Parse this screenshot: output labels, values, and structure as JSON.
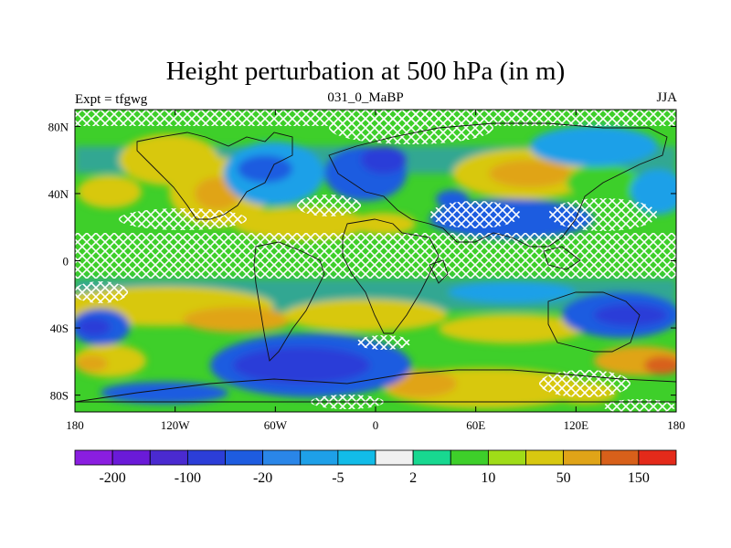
{
  "title": "Height perturbation at 500 hPa (in m)",
  "left_label": "Expt = tfgwg",
  "center_label": "031_0_MaBP",
  "right_label": "JJA",
  "map": {
    "lon_range": [
      -180,
      180
    ],
    "lat_range": [
      -90,
      90
    ],
    "x_ticks": [
      {
        "value": -180,
        "label": "180"
      },
      {
        "value": -120,
        "label": "120W"
      },
      {
        "value": -60,
        "label": "60W"
      },
      {
        "value": 0,
        "label": "0"
      },
      {
        "value": 60,
        "label": "60E"
      },
      {
        "value": 120,
        "label": "120E"
      },
      {
        "value": 180,
        "label": "180"
      }
    ],
    "y_ticks": [
      {
        "value": 80,
        "label": "80N"
      },
      {
        "value": 40,
        "label": "40N"
      },
      {
        "value": 0,
        "label": "0"
      },
      {
        "value": -40,
        "label": "40S"
      },
      {
        "value": -80,
        "label": "80S"
      }
    ]
  },
  "colorbar": {
    "colors": [
      "#8a1ee0",
      "#6a1ad8",
      "#4a2ad0",
      "#2c3ed8",
      "#1e5ce0",
      "#2a86e8",
      "#1ea0e8",
      "#12bce8",
      "#f0f0f0",
      "#18d890",
      "#3ecf2a",
      "#a0dc18",
      "#d8c810",
      "#e0a418",
      "#d8601a",
      "#e42a1a"
    ],
    "labels": [
      {
        "after_box": 1,
        "text": "-200"
      },
      {
        "after_box": 3,
        "text": "-100"
      },
      {
        "after_box": 5,
        "text": "-20"
      },
      {
        "after_box": 7,
        "text": "-5"
      },
      {
        "after_box": 9,
        "text": "2"
      },
      {
        "after_box": 11,
        "text": "10"
      },
      {
        "after_box": 13,
        "text": "50"
      },
      {
        "after_box": 15,
        "text": "150"
      }
    ]
  }
}
